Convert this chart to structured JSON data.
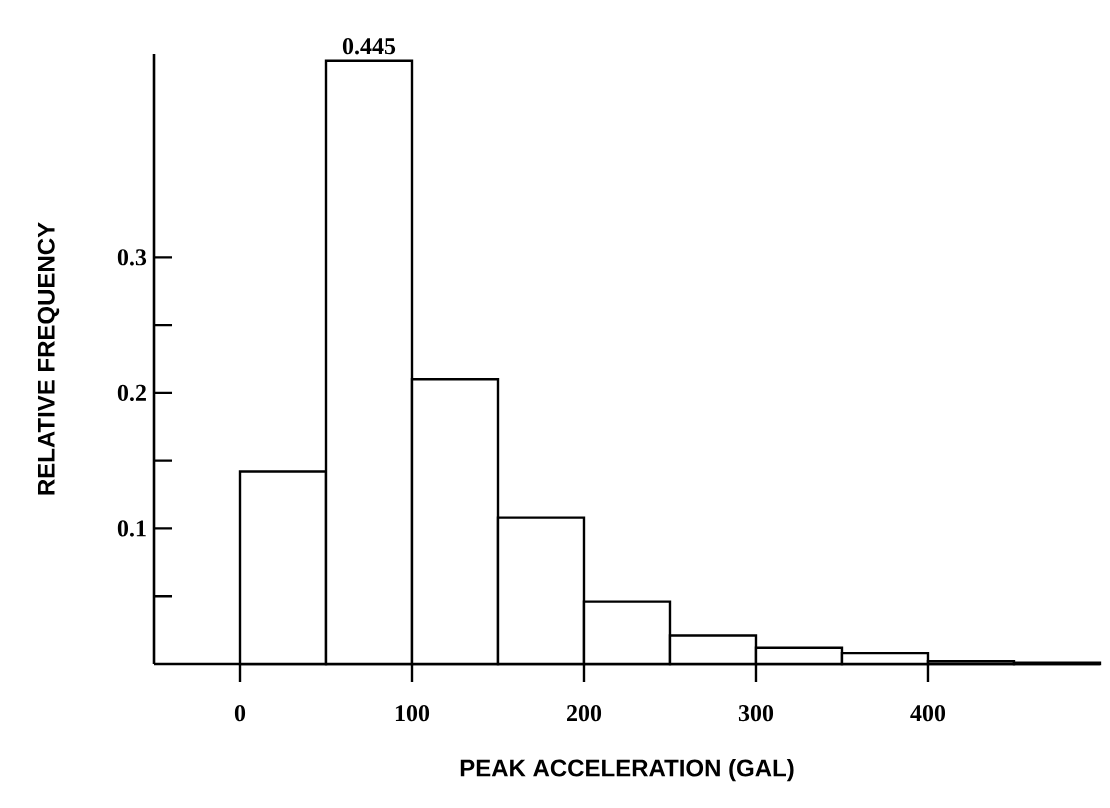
{
  "chart_data": {
    "type": "histogram",
    "xlabel": "PEAK ACCELERATION (GAL)",
    "ylabel": "RELATIVE FREQUENCY",
    "bins": [
      0,
      50,
      100,
      150,
      200,
      250,
      300,
      350,
      400,
      450,
      500
    ],
    "values": [
      0.142,
      0.445,
      0.21,
      0.108,
      0.046,
      0.021,
      0.012,
      0.008,
      0.002,
      0.001
    ],
    "value_labels": [
      null,
      "0.445",
      null,
      null,
      null,
      null,
      null,
      null,
      null,
      null
    ],
    "color": "#ffffff",
    "xlim": [
      -50,
      500
    ],
    "ylim": [
      0,
      0.45
    ],
    "xticks": [
      0,
      100,
      200,
      300,
      400
    ],
    "yticks": [
      {
        "value": 0.05,
        "label": null
      },
      0.1,
      {
        "value": 0.15,
        "label": null
      },
      0.2,
      {
        "value": 0.25,
        "label": null
      },
      0.3
    ],
    "grid": false
  }
}
